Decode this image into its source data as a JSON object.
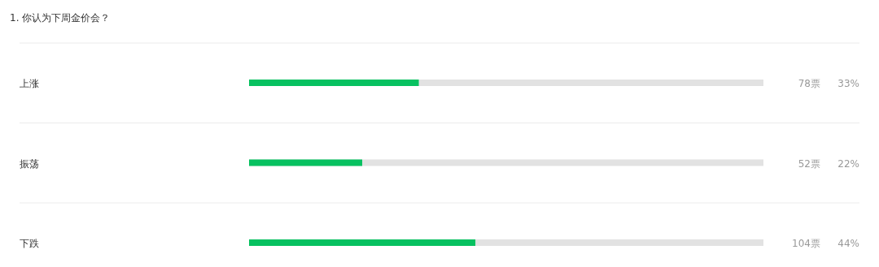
{
  "chart_data": {
    "type": "bar",
    "orientation": "horizontal",
    "title": "1. 你认为下周金价会？",
    "categories": [
      "上涨",
      "振荡",
      "下跌"
    ],
    "values": [
      33,
      22,
      44
    ],
    "color": "#07c160",
    "xlim": [
      0,
      100
    ],
    "tick_labels": "y",
    "value_labels": [
      "33%",
      "22%",
      "44%"
    ],
    "annotations": [
      "78票",
      "52票",
      "104票"
    ]
  }
}
